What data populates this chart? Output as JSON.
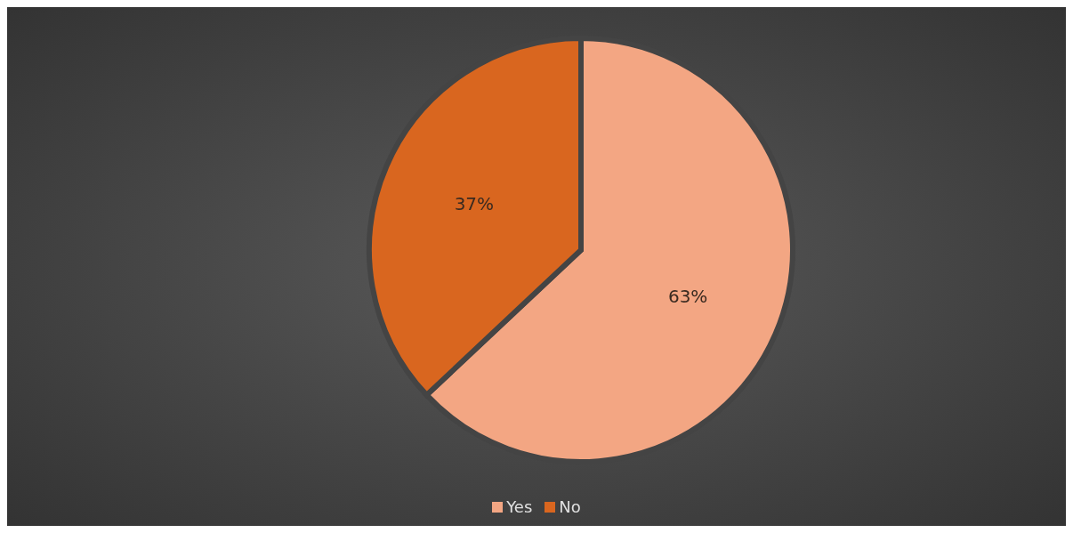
{
  "chart_data": {
    "type": "pie",
    "categories": [
      "Yes",
      "No"
    ],
    "values": [
      63,
      37
    ],
    "colors": [
      "#f3a683",
      "#d9661f"
    ],
    "value_labels": [
      "63%",
      "37%"
    ],
    "legend": "bottom"
  }
}
